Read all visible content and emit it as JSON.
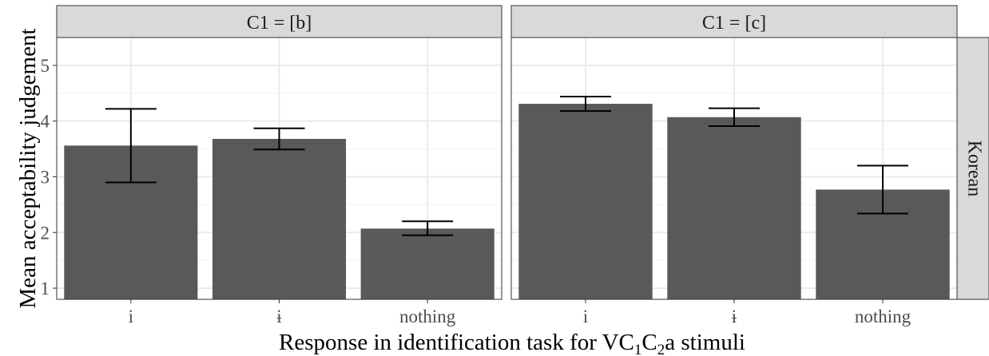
{
  "chart_data": {
    "type": "bar",
    "xlabel_parts": [
      "Response in identification task for VC",
      "1",
      "C",
      "2",
      "a stimuli"
    ],
    "ylabel": "Mean acceptability judgement",
    "ylim": [
      0.8,
      5.5
    ],
    "yticks": [
      "1",
      "2",
      "3",
      "4",
      "5"
    ],
    "categories": [
      "i",
      "ɨ",
      "nothing"
    ],
    "row_facet": "Korean",
    "grid": true,
    "bar_color": "#595959",
    "panels": [
      {
        "label": "C1 = [b]",
        "values": [
          3.56,
          3.68,
          2.07
        ],
        "error_low": [
          2.9,
          3.49,
          1.95
        ],
        "error_high": [
          4.22,
          3.87,
          2.2
        ]
      },
      {
        "label": "C1 = [c]",
        "values": [
          4.31,
          4.07,
          2.77
        ],
        "error_low": [
          4.18,
          3.91,
          2.34
        ],
        "error_high": [
          4.44,
          4.23,
          3.2
        ]
      }
    ]
  }
}
